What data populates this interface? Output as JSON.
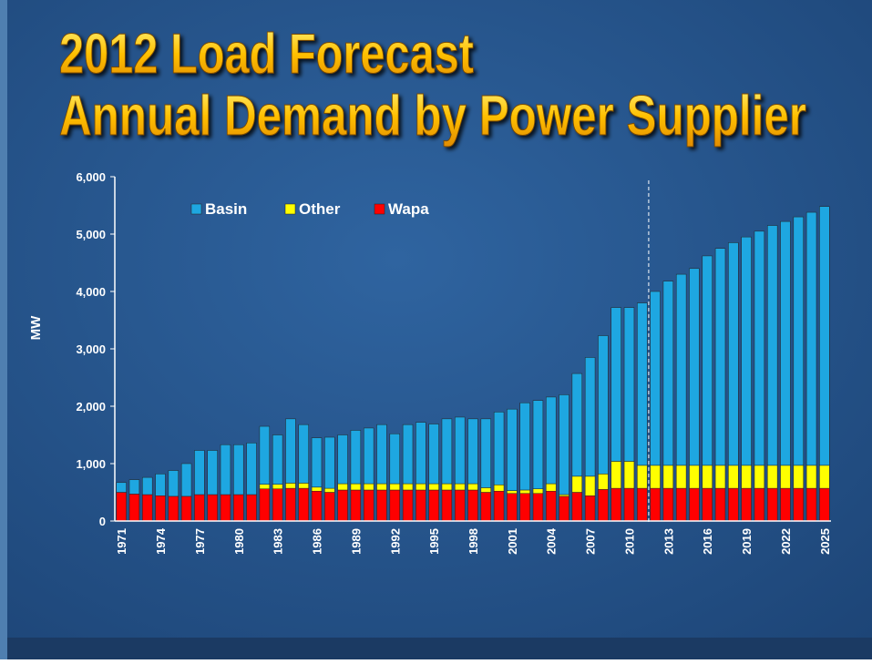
{
  "chart_data": {
    "type": "stacked_bar",
    "title": "2012 Load Forecast",
    "subtitle": "Annual Demand by Power Supplier",
    "ylabel": "MW",
    "categories": [
      "1971",
      null,
      null,
      "1974",
      null,
      null,
      "1977",
      null,
      null,
      "1980",
      null,
      null,
      "1983",
      null,
      null,
      "1986",
      null,
      null,
      "1989",
      null,
      null,
      "1992",
      null,
      null,
      "1995",
      null,
      null,
      "1998",
      null,
      null,
      "2001",
      null,
      null,
      "2004",
      null,
      null,
      "2007",
      null,
      null,
      "2010",
      null,
      null,
      "2013",
      null,
      null,
      "2016",
      null,
      null,
      "2019",
      null,
      null,
      "2022",
      null,
      null,
      "2025"
    ],
    "series": [
      {
        "name": "Basin",
        "color": "#1ea7e1",
        "values": [
          170,
          250,
          300,
          380,
          450,
          570,
          770,
          770,
          870,
          870,
          900,
          1010,
          860,
          1120,
          1020,
          860,
          890,
          850,
          930,
          970,
          1030,
          870,
          1030,
          1070,
          1040,
          1130,
          1160,
          1130,
          1200,
          1270,
          1420,
          1520,
          1540,
          1510,
          1740,
          1790,
          2070,
          2410,
          2680,
          2680,
          2830,
          3030,
          3210,
          3330,
          3430,
          3650,
          3780,
          3880,
          3980,
          4080,
          4180,
          4250,
          4330,
          4410,
          4510
        ]
      },
      {
        "name": "Other",
        "color": "#ffff00",
        "values": [
          0,
          0,
          0,
          0,
          0,
          0,
          0,
          0,
          0,
          0,
          0,
          80,
          80,
          90,
          90,
          70,
          70,
          110,
          110,
          110,
          110,
          110,
          110,
          110,
          110,
          110,
          110,
          110,
          80,
          110,
          50,
          60,
          80,
          130,
          30,
          280,
          340,
          270,
          470,
          470,
          400,
          400,
          400,
          400,
          400,
          400,
          400,
          400,
          400,
          400,
          400,
          400,
          400,
          400,
          400
        ]
      },
      {
        "name": "Wapa",
        "color": "#ff0000",
        "values": [
          500,
          470,
          460,
          440,
          430,
          430,
          460,
          460,
          460,
          460,
          460,
          560,
          560,
          570,
          570,
          520,
          500,
          540,
          540,
          540,
          540,
          540,
          540,
          540,
          540,
          540,
          540,
          540,
          500,
          520,
          480,
          480,
          480,
          520,
          430,
          500,
          440,
          550,
          570,
          570,
          570,
          570,
          570,
          570,
          570,
          570,
          570,
          570,
          570,
          570,
          570,
          570,
          570,
          570,
          570
        ]
      }
    ],
    "ylim": [
      0,
      6000
    ],
    "yticks": [
      0,
      {
        "value": 1000,
        "label": "1,000"
      },
      {
        "value": 2000,
        "label": "2,000"
      },
      {
        "value": 3000,
        "label": "3,000"
      },
      {
        "value": 4000,
        "label": "4,000"
      },
      {
        "value": 5000,
        "label": "5,000"
      },
      {
        "value": 6000,
        "label": "6,000"
      }
    ],
    "legend": "top-left"
  }
}
